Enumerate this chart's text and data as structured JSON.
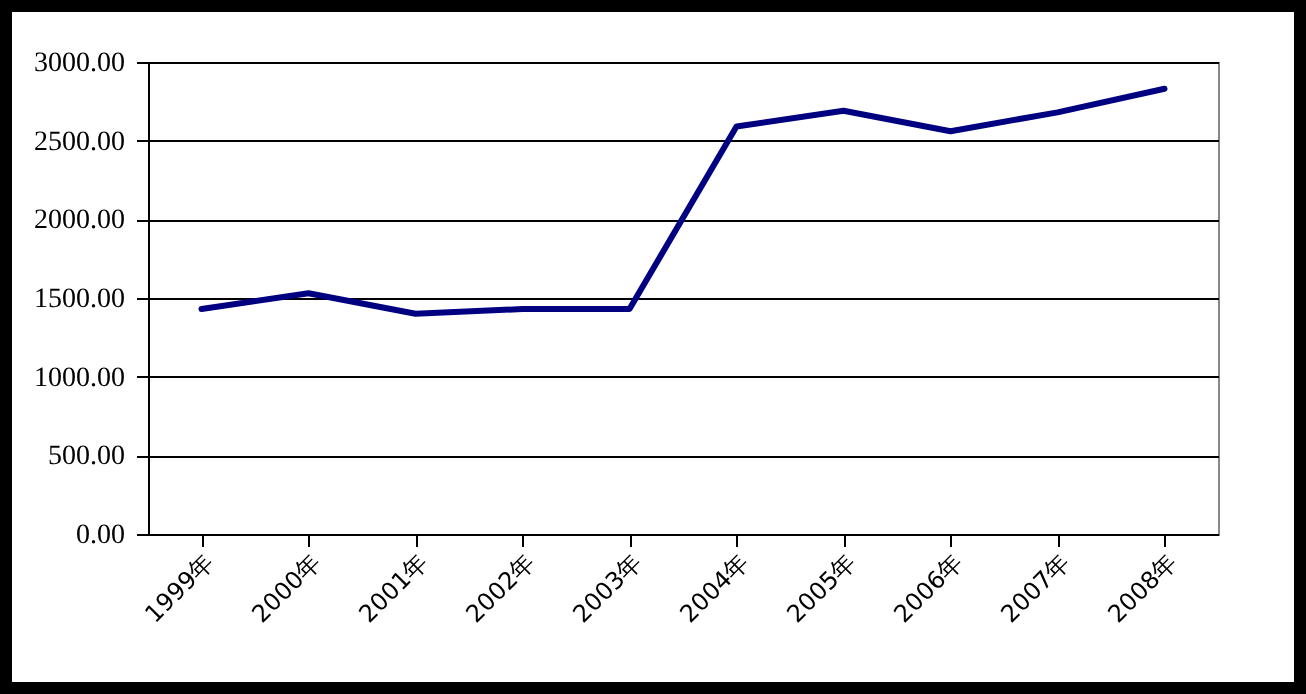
{
  "chart_data": {
    "type": "line",
    "categories": [
      "1999年",
      "2000年",
      "2001年",
      "2002年",
      "2003年",
      "2004年",
      "2005年",
      "2006年",
      "2007年",
      "2008年"
    ],
    "series": [
      {
        "color": "#000080",
        "values": [
          1430,
          1530,
          1400,
          1430,
          1430,
          2590,
          2690,
          2560,
          2680,
          2830
        ]
      }
    ],
    "ylim": [
      0,
      3000
    ],
    "yticks": [
      {
        "value": 0,
        "label": "0.00"
      },
      {
        "value": 500,
        "label": "500.00"
      },
      {
        "value": 1000,
        "label": "1000.00"
      },
      {
        "value": 1500,
        "label": "1500.00"
      },
      {
        "value": 2000,
        "label": "2000.00"
      },
      {
        "value": 2500,
        "label": "2500.00"
      },
      {
        "value": 3000,
        "label": "3000.00"
      }
    ],
    "grid": "y",
    "marker": "none",
    "line_style": "solid"
  }
}
